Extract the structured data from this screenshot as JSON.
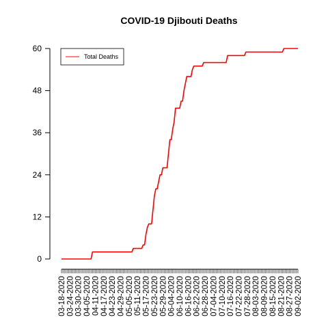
{
  "chart_data": {
    "type": "line",
    "title": "COVID-19 Djibouti Deaths",
    "xlabel": "",
    "ylabel": "",
    "ylim": [
      0,
      60
    ],
    "yticks": [
      0,
      12,
      24,
      36,
      48,
      60
    ],
    "grid": false,
    "legend_position": "top-left",
    "x_tick_labels": [
      "03-18-2020",
      "03-24-2020",
      "03-30-2020",
      "04-05-2020",
      "04-11-2020",
      "04-17-2020",
      "04-23-2020",
      "04-29-2020",
      "05-05-2020",
      "05-11-2020",
      "05-17-2020",
      "05-23-2020",
      "05-29-2020",
      "06-04-2020",
      "06-10-2020",
      "06-16-2020",
      "06-22-2020",
      "06-28-2020",
      "07-04-2020",
      "07-10-2020",
      "07-16-2020",
      "07-22-2020",
      "07-28-2020",
      "08-03-2020",
      "08-09-2020",
      "08-15-2020",
      "08-21-2020",
      "08-27-2020",
      "09-02-2020"
    ],
    "date_range": [
      "03-18-2020",
      "09-02-2020"
    ],
    "series": [
      {
        "name": "Total Deaths",
        "color": "#ff0000",
        "points": [
          {
            "x": "03-18-2020",
            "y": 0
          },
          {
            "x": "04-08-2020",
            "y": 0
          },
          {
            "x": "04-09-2020",
            "y": 2
          },
          {
            "x": "05-07-2020",
            "y": 2
          },
          {
            "x": "05-08-2020",
            "y": 3
          },
          {
            "x": "05-14-2020",
            "y": 3
          },
          {
            "x": "05-15-2020",
            "y": 4
          },
          {
            "x": "05-16-2020",
            "y": 4
          },
          {
            "x": "05-17-2020",
            "y": 7
          },
          {
            "x": "05-18-2020",
            "y": 9
          },
          {
            "x": "05-19-2020",
            "y": 10
          },
          {
            "x": "05-21-2020",
            "y": 10
          },
          {
            "x": "05-22-2020",
            "y": 14
          },
          {
            "x": "05-23-2020",
            "y": 18
          },
          {
            "x": "05-24-2020",
            "y": 20
          },
          {
            "x": "05-25-2020",
            "y": 20
          },
          {
            "x": "05-26-2020",
            "y": 22
          },
          {
            "x": "05-27-2020",
            "y": 24
          },
          {
            "x": "05-28-2020",
            "y": 24
          },
          {
            "x": "05-29-2020",
            "y": 26
          },
          {
            "x": "06-01-2020",
            "y": 26
          },
          {
            "x": "06-02-2020",
            "y": 30
          },
          {
            "x": "06-03-2020",
            "y": 34
          },
          {
            "x": "06-04-2020",
            "y": 34
          },
          {
            "x": "06-05-2020",
            "y": 37
          },
          {
            "x": "06-06-2020",
            "y": 39
          },
          {
            "x": "06-07-2020",
            "y": 43
          },
          {
            "x": "06-10-2020",
            "y": 43
          },
          {
            "x": "06-11-2020",
            "y": 45
          },
          {
            "x": "06-12-2020",
            "y": 45
          },
          {
            "x": "06-13-2020",
            "y": 48
          },
          {
            "x": "06-14-2020",
            "y": 50
          },
          {
            "x": "06-15-2020",
            "y": 52
          },
          {
            "x": "06-18-2020",
            "y": 52
          },
          {
            "x": "06-19-2020",
            "y": 54
          },
          {
            "x": "06-20-2020",
            "y": 55
          },
          {
            "x": "06-26-2020",
            "y": 55
          },
          {
            "x": "06-27-2020",
            "y": 56
          },
          {
            "x": "07-13-2020",
            "y": 56
          },
          {
            "x": "07-14-2020",
            "y": 58
          },
          {
            "x": "07-26-2020",
            "y": 58
          },
          {
            "x": "07-27-2020",
            "y": 59
          },
          {
            "x": "08-22-2020",
            "y": 59
          },
          {
            "x": "08-23-2020",
            "y": 60
          },
          {
            "x": "09-02-2020",
            "y": 60
          }
        ]
      }
    ]
  }
}
